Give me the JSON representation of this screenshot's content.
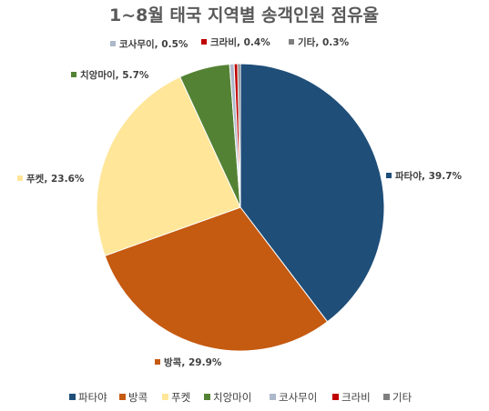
{
  "chart_data": {
    "type": "pie",
    "title": "1~8월 태국 지역별 송객인원 점유율",
    "unit": "%",
    "categories": [
      "파타야",
      "방콕",
      "푸켓",
      "치앙마이",
      "코사무이",
      "크라비",
      "기타"
    ],
    "values": [
      39.7,
      29.9,
      23.6,
      5.7,
      0.5,
      0.4,
      0.3
    ],
    "data_labels": [
      "파타야, 39.7%",
      "방콕, 29.9%",
      "푸켓, 23.6%",
      "치앙마이, 5.7%",
      "코사무이, 0.5%",
      "크라비, 0.4%",
      "기타, 0.3%"
    ],
    "colors": [
      "#1F4E79",
      "#C55A11",
      "#FFE699",
      "#548235",
      "#ADB9CA",
      "#C00000",
      "#7F7F7F"
    ],
    "legend": {
      "position": "bottom",
      "entries": [
        "파타야",
        "방콕",
        "푸켓",
        "치앙마이",
        "코사무이",
        "크라비",
        "기타"
      ]
    }
  }
}
